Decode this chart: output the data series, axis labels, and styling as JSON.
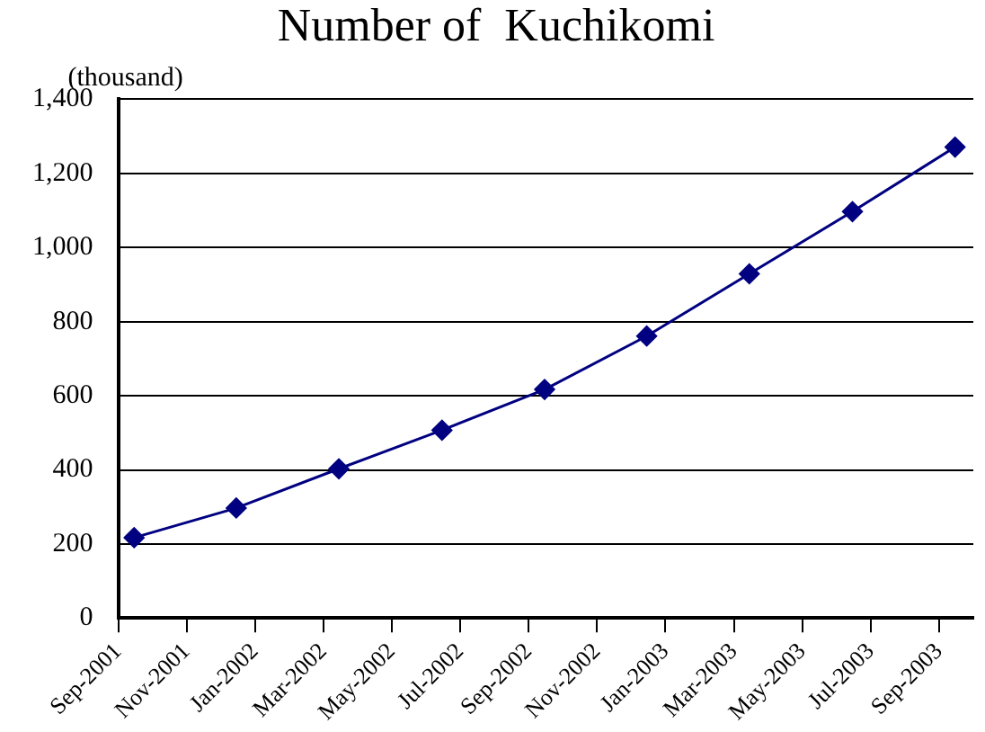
{
  "chart_data": {
    "type": "line",
    "title": "Number of  Kuchikomi",
    "ylabel": "(thousand)",
    "x": [
      "2001-09-15",
      "2001-12-15",
      "2002-03-15",
      "2002-06-15",
      "2002-09-15",
      "2002-12-15",
      "2003-03-15",
      "2003-06-15",
      "2003-09-15"
    ],
    "series": [
      {
        "color": "#000080",
        "values": [
          217,
          297,
          403,
          507,
          617,
          761,
          929,
          1097,
          1271
        ]
      }
    ],
    "xlim": [
      "2001-09",
      "2003-10"
    ],
    "xticks": [
      {
        "value": "2001-09",
        "label": "Sep-2001"
      },
      {
        "value": "2001-11",
        "label": "Nov-2001"
      },
      {
        "value": "2002-01",
        "label": "Jan-2002"
      },
      {
        "value": "2002-03",
        "label": "Mar-2002"
      },
      {
        "value": "2002-05",
        "label": "May-2002"
      },
      {
        "value": "2002-07",
        "label": "Jul-2002"
      },
      {
        "value": "2002-09",
        "label": "Sep-2002"
      },
      {
        "value": "2002-11",
        "label": "Nov-2002"
      },
      {
        "value": "2003-01",
        "label": "Jan-2003"
      },
      {
        "value": "2003-03",
        "label": "Mar-2003"
      },
      {
        "value": "2003-05",
        "label": "May-2003"
      },
      {
        "value": "2003-07",
        "label": "Jul-2003"
      },
      {
        "value": "2003-09",
        "label": "Sep-2003"
      }
    ],
    "ylim": [
      0,
      1400
    ],
    "yticks": [
      0,
      200,
      400,
      600,
      800,
      {
        "value": 1000,
        "label": "1,000"
      },
      {
        "value": 1200,
        "label": "1,200"
      },
      {
        "value": 1400,
        "label": "1,400"
      }
    ],
    "grid": "y",
    "legend": false,
    "marker": "diamond",
    "line_style": "solid"
  }
}
